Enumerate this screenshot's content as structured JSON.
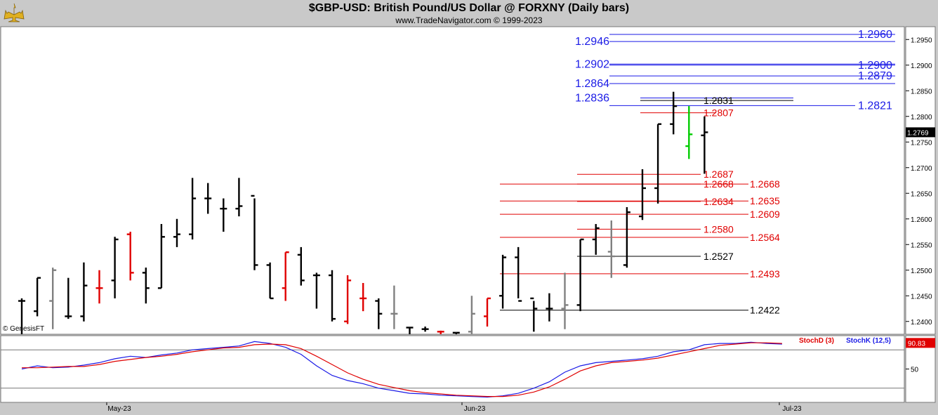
{
  "header": {
    "title": "$GBP-USD:  British Pound/US Dollar @ FORXNY  (Daily bars)",
    "subtitle": "www.TradeNavigator.com © 1999-2023"
  },
  "watermark": "© GenesisFT",
  "colors": {
    "up": "#000000",
    "down": "#e00000",
    "neutral": "#808080",
    "latest": "#00cc00",
    "blue_level": "#1a1ae6",
    "red_level": "#e00000",
    "black_level": "#000000",
    "stoch_d": "#e00000",
    "stoch_k": "#1a1ae6"
  },
  "chart_data": [
    {
      "type": "ohlc",
      "ylim": [
        1.2375,
        1.2975
      ],
      "y_ticks": [
        "1.2400",
        "1.2450",
        "1.2500",
        "1.2550",
        "1.2600",
        "1.2650",
        "1.2700",
        "1.2750",
        "1.2800",
        "1.2850",
        "1.2900",
        "1.2950"
      ],
      "x_labels": [
        "May-23",
        "Jun-23",
        "Jul-23"
      ],
      "last_price": "1.2769",
      "bars": [
        {
          "o": 1.244,
          "h": 1.2445,
          "l": 1.231,
          "c": 1.244,
          "color": "up"
        },
        {
          "o": 1.242,
          "h": 1.2485,
          "l": 1.241,
          "c": 1.2485,
          "color": "up"
        },
        {
          "o": 1.244,
          "h": 1.2505,
          "l": 1.2385,
          "c": 1.25,
          "color": "neutral"
        },
        {
          "o": 1.241,
          "h": 1.2485,
          "l": 1.2405,
          "c": 1.241,
          "color": "up"
        },
        {
          "o": 1.241,
          "h": 1.2515,
          "l": 1.24,
          "c": 1.247,
          "color": "up"
        },
        {
          "o": 1.2465,
          "h": 1.25,
          "l": 1.2435,
          "c": 1.2465,
          "color": "down"
        },
        {
          "o": 1.248,
          "h": 1.2565,
          "l": 1.2445,
          "c": 1.256,
          "color": "up"
        },
        {
          "o": 1.257,
          "h": 1.2575,
          "l": 1.248,
          "c": 1.2495,
          "color": "down"
        },
        {
          "o": 1.2495,
          "h": 1.2505,
          "l": 1.2435,
          "c": 1.2465,
          "color": "up"
        },
        {
          "o": 1.2465,
          "h": 1.259,
          "l": 1.2465,
          "c": 1.2565,
          "color": "up"
        },
        {
          "o": 1.2565,
          "h": 1.26,
          "l": 1.2545,
          "c": 1.257,
          "color": "up"
        },
        {
          "o": 1.257,
          "h": 1.268,
          "l": 1.256,
          "c": 1.264,
          "color": "up"
        },
        {
          "o": 1.264,
          "h": 1.267,
          "l": 1.261,
          "c": 1.264,
          "color": "up"
        },
        {
          "o": 1.262,
          "h": 1.264,
          "l": 1.2575,
          "c": 1.262,
          "color": "up"
        },
        {
          "o": 1.262,
          "h": 1.268,
          "l": 1.2605,
          "c": 1.2625,
          "color": "up"
        },
        {
          "o": 1.2645,
          "h": 1.264,
          "l": 1.25,
          "c": 1.251,
          "color": "up"
        },
        {
          "o": 1.251,
          "h": 1.2515,
          "l": 1.2445,
          "c": 1.2445,
          "color": "up"
        },
        {
          "o": 1.2465,
          "h": 1.2535,
          "l": 1.244,
          "c": 1.2535,
          "color": "down"
        },
        {
          "o": 1.253,
          "h": 1.2545,
          "l": 1.247,
          "c": 1.248,
          "color": "up"
        },
        {
          "o": 1.249,
          "h": 1.2495,
          "l": 1.2425,
          "c": 1.249,
          "color": "up"
        },
        {
          "o": 1.249,
          "h": 1.25,
          "l": 1.24,
          "c": 1.2405,
          "color": "up"
        },
        {
          "o": 1.24,
          "h": 1.249,
          "l": 1.2395,
          "c": 1.248,
          "color": "down"
        },
        {
          "o": 1.2445,
          "h": 1.2475,
          "l": 1.242,
          "c": 1.2445,
          "color": "down"
        },
        {
          "o": 1.244,
          "h": 1.2445,
          "l": 1.2385,
          "c": 1.2415,
          "color": "up"
        },
        {
          "o": 1.2415,
          "h": 1.247,
          "l": 1.2385,
          "c": 1.2415,
          "color": "neutral"
        },
        {
          "o": 1.2388,
          "h": 1.2388,
          "l": 1.2375,
          "c": 1.2388,
          "color": "up"
        },
        {
          "o": 1.2385,
          "h": 1.239,
          "l": 1.238,
          "c": 1.2385,
          "color": "up"
        },
        {
          "o": 1.238,
          "h": 1.2382,
          "l": 1.2375,
          "c": 1.238,
          "color": "down"
        },
        {
          "o": 1.2378,
          "h": 1.2378,
          "l": 1.2375,
          "c": 1.2378,
          "color": "up"
        },
        {
          "o": 1.238,
          "h": 1.245,
          "l": 1.2375,
          "c": 1.2415,
          "color": "neutral"
        },
        {
          "o": 1.241,
          "h": 1.2445,
          "l": 1.239,
          "c": 1.2445,
          "color": "down"
        },
        {
          "o": 1.245,
          "h": 1.253,
          "l": 1.2425,
          "c": 1.2525,
          "color": "up"
        },
        {
          "o": 1.2525,
          "h": 1.2545,
          "l": 1.2445,
          "c": 1.244,
          "color": "up"
        },
        {
          "o": 1.2445,
          "h": 1.244,
          "l": 1.238,
          "c": 1.2425,
          "color": "up"
        },
        {
          "o": 1.2425,
          "h": 1.2455,
          "l": 1.24,
          "c": 1.2425,
          "color": "up"
        },
        {
          "o": 1.2425,
          "h": 1.2495,
          "l": 1.2385,
          "c": 1.2432,
          "color": "neutral"
        },
        {
          "o": 1.2432,
          "h": 1.256,
          "l": 1.242,
          "c": 1.256,
          "color": "up"
        },
        {
          "o": 1.256,
          "h": 1.259,
          "l": 1.253,
          "c": 1.2582,
          "color": "up"
        },
        {
          "o": 1.2536,
          "h": 1.2597,
          "l": 1.2485,
          "c": 1.2527,
          "color": "neutral"
        },
        {
          "o": 1.251,
          "h": 1.2623,
          "l": 1.2505,
          "c": 1.2613,
          "color": "up"
        },
        {
          "o": 1.2605,
          "h": 1.2697,
          "l": 1.2598,
          "c": 1.266,
          "color": "up"
        },
        {
          "o": 1.266,
          "h": 1.2785,
          "l": 1.263,
          "c": 1.2785,
          "color": "up"
        },
        {
          "o": 1.2785,
          "h": 1.2848,
          "l": 1.2765,
          "c": 1.282,
          "color": "up"
        },
        {
          "o": 1.2742,
          "h": 1.282,
          "l": 1.2717,
          "c": 1.2765,
          "color": "latest"
        },
        {
          "o": 1.2763,
          "h": 1.28,
          "l": 1.2688,
          "c": 1.2769,
          "color": "up"
        }
      ],
      "levels": [
        {
          "value": 1.296,
          "label": "1.2960",
          "color": "blue",
          "side": "right"
        },
        {
          "value": 1.2946,
          "label": "1.2946",
          "color": "blue",
          "side": "left"
        },
        {
          "value": 1.2902,
          "label": "1.2902",
          "color": "blue",
          "side": "left"
        },
        {
          "value": 1.29,
          "label": "1.2900",
          "color": "blue",
          "side": "right"
        },
        {
          "value": 1.2879,
          "label": "1.2879",
          "color": "blue",
          "side": "right"
        },
        {
          "value": 1.2864,
          "label": "1.2864",
          "color": "blue",
          "side": "left"
        },
        {
          "value": 1.2836,
          "label": "1.2836",
          "color": "blue",
          "side": "left"
        },
        {
          "value": 1.2831,
          "label": "1.2831",
          "color": "black",
          "side": "mid"
        },
        {
          "value": 1.2821,
          "label": "1.2821",
          "color": "blue",
          "side": "right"
        },
        {
          "value": 1.2807,
          "label": "1.2807",
          "color": "red",
          "side": "mid"
        },
        {
          "value": 1.2687,
          "label": "1.2687",
          "color": "red",
          "side": "mid"
        },
        {
          "value": 1.2668,
          "label": "1.2668",
          "color": "red",
          "side": "mid"
        },
        {
          "value": 1.2668,
          "label": "1.2668",
          "color": "red",
          "side": "far"
        },
        {
          "value": 1.2634,
          "label": "1.2634",
          "color": "red",
          "side": "mid"
        },
        {
          "value": 1.2635,
          "label": "1.2635",
          "color": "red",
          "side": "far"
        },
        {
          "value": 1.2609,
          "label": "1.2609",
          "color": "red",
          "side": "far"
        },
        {
          "value": 1.258,
          "label": "1.2580",
          "color": "red",
          "side": "mid"
        },
        {
          "value": 1.2564,
          "label": "1.2564",
          "color": "red",
          "side": "far"
        },
        {
          "value": 1.2527,
          "label": "1.2527",
          "color": "black",
          "side": "mid"
        },
        {
          "value": 1.2493,
          "label": "1.2493",
          "color": "red",
          "side": "far"
        },
        {
          "value": 1.2422,
          "label": "1.2422",
          "color": "black",
          "side": "far"
        }
      ]
    },
    {
      "type": "line",
      "ylim": [
        0,
        100
      ],
      "y_ticks": [
        "50"
      ],
      "reference_lines": [
        80,
        20
      ],
      "last_value": "90.83",
      "legend": [
        "StochD (3)",
        "StochK (12,5)"
      ],
      "series": [
        {
          "name": "StochK (12,5)",
          "color": "stoch_k",
          "values": [
            50,
            55,
            52,
            53,
            56,
            60,
            66,
            70,
            68,
            72,
            75,
            80,
            82,
            84,
            86,
            93,
            90,
            84,
            73,
            55,
            40,
            32,
            27,
            20,
            16,
            12,
            11,
            9,
            8,
            7,
            6,
            8,
            12,
            20,
            30,
            45,
            55,
            60,
            62,
            64,
            66,
            70,
            77,
            80,
            88,
            90,
            90,
            92,
            90,
            89
          ]
        },
        {
          "name": "StochD (3)",
          "color": "stoch_d",
          "values": [
            52,
            52,
            53,
            54,
            54,
            57,
            62,
            65,
            68,
            70,
            73,
            77,
            80,
            83,
            84,
            88,
            89,
            88,
            82,
            70,
            57,
            44,
            34,
            26,
            21,
            16,
            13,
            11,
            9,
            8,
            7,
            7,
            9,
            14,
            22,
            34,
            47,
            55,
            60,
            62,
            64,
            67,
            72,
            77,
            82,
            87,
            89,
            91,
            91,
            90
          ]
        }
      ]
    }
  ]
}
